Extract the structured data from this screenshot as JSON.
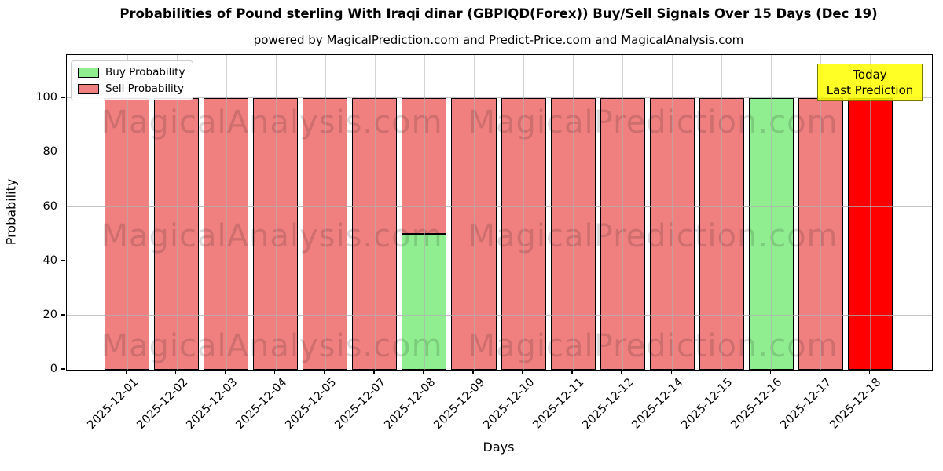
{
  "figure": {
    "title": "Probabilities of Pound sterling With Iraqi dinar (GBPIQD(Forex)) Buy/Sell Signals Over 15 Days (Dec 19)",
    "subtitle": "powered by MagicalPrediction.com and Predict-Price.com and MagicalAnalysis.com"
  },
  "chart_data": {
    "type": "bar",
    "stacked": true,
    "title": "Probabilities of Pound sterling With Iraqi dinar (GBPIQD(Forex)) Buy/Sell Signals Over 15 Days (Dec 19)",
    "subtitle": "powered by MagicalPrediction.com and Predict-Price.com and MagicalAnalysis.com",
    "xlabel": "Days",
    "ylabel": "Probability",
    "ylim": [
      0,
      116
    ],
    "yticks": [
      0,
      20,
      40,
      60,
      80,
      100
    ],
    "grid": true,
    "dashed_reference_line_y": 110,
    "categories": [
      "2025-12-01",
      "2025-12-02",
      "2025-12-03",
      "2025-12-04",
      "2025-12-05",
      "2025-12-07",
      "2025-12-08",
      "2025-12-09",
      "2025-12-10",
      "2025-12-11",
      "2025-12-12",
      "2025-12-14",
      "2025-12-15",
      "2025-12-16",
      "2025-12-17",
      "2025-12-18"
    ],
    "series": [
      {
        "name": "Buy Probability",
        "color": "#90ee90",
        "values": [
          0,
          0,
          0,
          0,
          0,
          0,
          50,
          0,
          0,
          0,
          0,
          0,
          0,
          100,
          0,
          0
        ]
      },
      {
        "name": "Sell Probability",
        "color": "#f08080",
        "values": [
          100,
          100,
          100,
          100,
          100,
          100,
          50,
          100,
          100,
          100,
          100,
          100,
          100,
          0,
          100,
          0
        ]
      },
      {
        "name": "Today Last Prediction (Sell)",
        "color": "#ff0000",
        "values": [
          0,
          0,
          0,
          0,
          0,
          0,
          0,
          0,
          0,
          0,
          0,
          0,
          0,
          0,
          0,
          100
        ]
      }
    ],
    "legend": {
      "position": "upper left",
      "entries": [
        {
          "label": "Buy Probability",
          "color": "#90ee90"
        },
        {
          "label": "Sell Probability",
          "color": "#f08080"
        }
      ]
    },
    "annotation_box": {
      "line1": "Today",
      "line2": "Last Prediction",
      "bg_color": "#ffff00"
    },
    "watermark_left": "MagicalAnalysis.com",
    "watermark_right": "MagicalPrediction.com",
    "colors": {
      "buy": "#90ee90",
      "sell": "#f08080",
      "today_bar": "#ff0000",
      "annotation_bg": "#ffff00",
      "grid": "#b0b0b0"
    }
  }
}
